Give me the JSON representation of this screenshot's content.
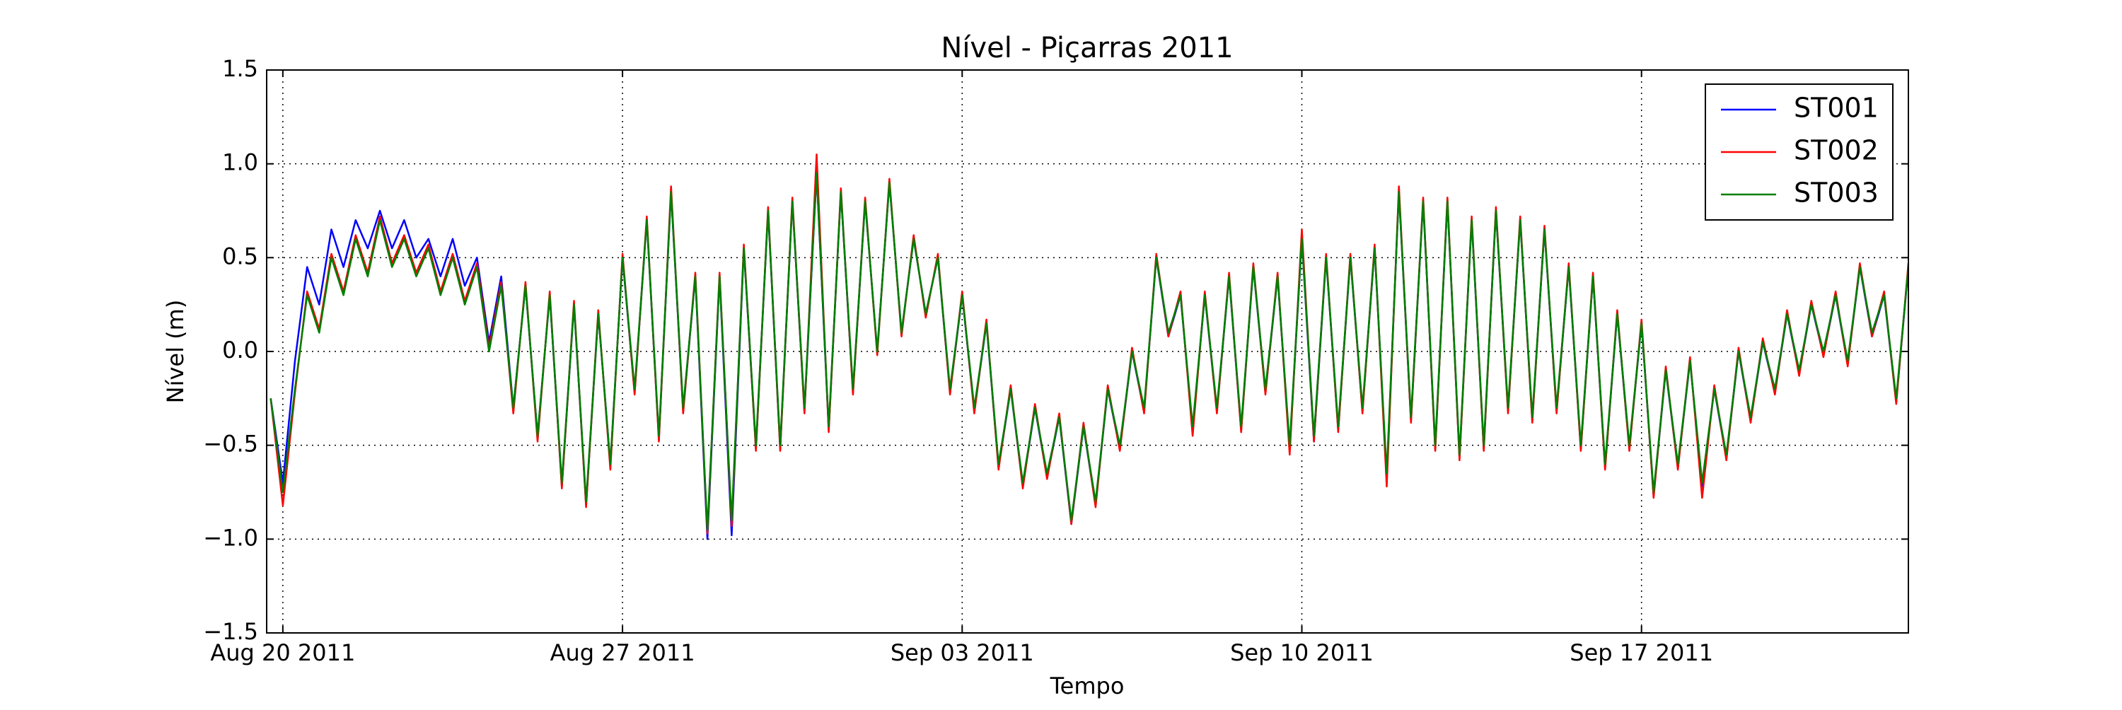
{
  "chart_data": {
    "type": "line",
    "title": "Nível - Piçarras 2011",
    "x_label": "Tempo",
    "y_label": "Nível (m)",
    "x": [
      "2011-08-19 18:00",
      "2011-08-20 00:00",
      "2011-08-20 06:00",
      "2011-08-20 12:00",
      "2011-08-20 18:00",
      "2011-08-21 00:00",
      "2011-08-21 06:00",
      "2011-08-21 12:00",
      "2011-08-21 18:00",
      "2011-08-22 00:00",
      "2011-08-22 06:00",
      "2011-08-22 12:00",
      "2011-08-22 18:00",
      "2011-08-23 00:00",
      "2011-08-23 06:00",
      "2011-08-23 12:00",
      "2011-08-23 18:00",
      "2011-08-24 00:00",
      "2011-08-24 06:00",
      "2011-08-24 12:00",
      "2011-08-24 18:00",
      "2011-08-25 00:00",
      "2011-08-25 06:00",
      "2011-08-25 12:00",
      "2011-08-25 18:00",
      "2011-08-26 00:00",
      "2011-08-26 06:00",
      "2011-08-26 12:00",
      "2011-08-26 18:00",
      "2011-08-27 00:00",
      "2011-08-27 06:00",
      "2011-08-27 12:00",
      "2011-08-27 18:00",
      "2011-08-28 00:00",
      "2011-08-28 06:00",
      "2011-08-28 12:00",
      "2011-08-28 18:00",
      "2011-08-29 00:00",
      "2011-08-29 06:00",
      "2011-08-29 12:00",
      "2011-08-29 18:00",
      "2011-08-30 00:00",
      "2011-08-30 06:00",
      "2011-08-30 12:00",
      "2011-08-30 18:00",
      "2011-08-31 00:00",
      "2011-08-31 06:00",
      "2011-08-31 12:00",
      "2011-08-31 18:00",
      "2011-09-01 00:00",
      "2011-09-01 06:00",
      "2011-09-01 12:00",
      "2011-09-01 18:00",
      "2011-09-02 00:00",
      "2011-09-02 06:00",
      "2011-09-02 12:00",
      "2011-09-02 18:00",
      "2011-09-03 00:00",
      "2011-09-03 06:00",
      "2011-09-03 12:00",
      "2011-09-03 18:00",
      "2011-09-04 00:00",
      "2011-09-04 06:00",
      "2011-09-04 12:00",
      "2011-09-04 18:00",
      "2011-09-05 00:00",
      "2011-09-05 06:00",
      "2011-09-05 12:00",
      "2011-09-05 18:00",
      "2011-09-06 00:00",
      "2011-09-06 06:00",
      "2011-09-06 12:00",
      "2011-09-06 18:00",
      "2011-09-07 00:00",
      "2011-09-07 06:00",
      "2011-09-07 12:00",
      "2011-09-07 18:00",
      "2011-09-08 00:00",
      "2011-09-08 06:00",
      "2011-09-08 12:00",
      "2011-09-08 18:00",
      "2011-09-09 00:00",
      "2011-09-09 06:00",
      "2011-09-09 12:00",
      "2011-09-09 18:00",
      "2011-09-10 00:00",
      "2011-09-10 06:00",
      "2011-09-10 12:00",
      "2011-09-10 18:00",
      "2011-09-11 00:00",
      "2011-09-11 06:00",
      "2011-09-11 12:00",
      "2011-09-11 18:00",
      "2011-09-12 00:00",
      "2011-09-12 06:00",
      "2011-09-12 12:00",
      "2011-09-12 18:00",
      "2011-09-13 00:00",
      "2011-09-13 06:00",
      "2011-09-13 12:00",
      "2011-09-13 18:00",
      "2011-09-14 00:00",
      "2011-09-14 06:00",
      "2011-09-14 12:00",
      "2011-09-14 18:00",
      "2011-09-15 00:00",
      "2011-09-15 06:00",
      "2011-09-15 12:00",
      "2011-09-15 18:00",
      "2011-09-16 00:00",
      "2011-09-16 06:00",
      "2011-09-16 12:00",
      "2011-09-16 18:00",
      "2011-09-17 00:00",
      "2011-09-17 06:00",
      "2011-09-17 12:00",
      "2011-09-17 18:00",
      "2011-09-18 00:00",
      "2011-09-18 06:00",
      "2011-09-18 12:00",
      "2011-09-18 18:00",
      "2011-09-19 00:00",
      "2011-09-19 06:00",
      "2011-09-19 12:00",
      "2011-09-19 18:00",
      "2011-09-20 00:00",
      "2011-09-20 06:00",
      "2011-09-20 12:00",
      "2011-09-20 18:00",
      "2011-09-21 00:00",
      "2011-09-21 06:00",
      "2011-09-21 12:00",
      "2011-09-21 18:00",
      "2011-09-22 00:00",
      "2011-09-22 06:00",
      "2011-09-22 12:00"
    ],
    "series": [
      {
        "name": "ST001",
        "color": "#0000ff",
        "values": [
          -0.25,
          -0.7,
          -0.05,
          0.45,
          0.25,
          0.65,
          0.45,
          0.7,
          0.55,
          0.75,
          0.55,
          0.7,
          0.5,
          0.6,
          0.4,
          0.6,
          0.35,
          0.5,
          0.05,
          0.4,
          -0.3,
          0.35,
          -0.45,
          0.3,
          -0.72,
          0.25,
          -0.82,
          0.2,
          -0.6,
          0.5,
          -0.22,
          0.7,
          -0.47,
          0.85,
          -0.32,
          0.4,
          -1.0,
          0.4,
          -0.98,
          0.55,
          -0.52,
          0.75,
          -0.52,
          0.8,
          -0.32,
          0.95,
          -0.42,
          0.85,
          -0.22,
          0.8,
          0.0,
          0.9,
          0.1,
          0.6,
          0.2,
          0.5,
          -0.22,
          0.3,
          -0.32,
          0.15,
          -0.62,
          -0.2,
          -0.72,
          -0.3,
          -0.67,
          -0.35,
          -0.92,
          -0.4,
          -0.82,
          -0.2,
          -0.52,
          0.0,
          -0.32,
          0.5,
          0.08,
          0.3,
          -0.42,
          0.3,
          -0.32,
          0.4,
          -0.42,
          0.45,
          -0.22,
          0.4,
          -0.52,
          0.6,
          -0.48,
          0.5,
          -0.42,
          0.5,
          -0.32,
          0.55,
          -0.67,
          0.85,
          -0.37,
          0.8,
          -0.52,
          0.8,
          -0.57,
          0.7,
          -0.52,
          0.75,
          -0.32,
          0.7,
          -0.37,
          0.65,
          -0.32,
          0.45,
          -0.52,
          0.4,
          -0.62,
          0.2,
          -0.52,
          0.15,
          -0.77,
          -0.1,
          -0.62,
          -0.05,
          -0.72,
          -0.2,
          -0.57,
          0.0,
          -0.37,
          0.05,
          -0.22,
          0.2,
          -0.12,
          0.25,
          -0.02,
          0.3,
          -0.07,
          0.45,
          0.08,
          0.3,
          -0.27,
          0.45
        ]
      },
      {
        "name": "ST002",
        "color": "#ff0000",
        "values": [
          -0.25,
          -0.82,
          -0.22,
          0.32,
          0.12,
          0.52,
          0.32,
          0.62,
          0.42,
          0.72,
          0.47,
          0.62,
          0.42,
          0.57,
          0.32,
          0.52,
          0.27,
          0.47,
          0.02,
          0.37,
          -0.33,
          0.37,
          -0.48,
          0.32,
          -0.73,
          0.27,
          -0.83,
          0.22,
          -0.63,
          0.52,
          -0.23,
          0.72,
          -0.48,
          0.88,
          -0.33,
          0.42,
          -0.97,
          0.42,
          -0.93,
          0.57,
          -0.53,
          0.77,
          -0.53,
          0.82,
          -0.33,
          1.05,
          -0.43,
          0.87,
          -0.23,
          0.82,
          -0.02,
          0.92,
          0.08,
          0.62,
          0.18,
          0.52,
          -0.23,
          0.32,
          -0.33,
          0.17,
          -0.63,
          -0.18,
          -0.73,
          -0.28,
          -0.68,
          -0.33,
          -0.92,
          -0.38,
          -0.83,
          -0.18,
          -0.53,
          0.02,
          -0.33,
          0.52,
          0.08,
          0.32,
          -0.45,
          0.32,
          -0.33,
          0.42,
          -0.43,
          0.47,
          -0.23,
          0.42,
          -0.55,
          0.65,
          -0.48,
          0.52,
          -0.43,
          0.52,
          -0.33,
          0.57,
          -0.72,
          0.88,
          -0.38,
          0.82,
          -0.53,
          0.82,
          -0.58,
          0.72,
          -0.53,
          0.77,
          -0.33,
          0.72,
          -0.38,
          0.67,
          -0.33,
          0.47,
          -0.53,
          0.42,
          -0.63,
          0.22,
          -0.53,
          0.17,
          -0.78,
          -0.08,
          -0.63,
          -0.03,
          -0.78,
          -0.18,
          -0.58,
          0.02,
          -0.38,
          0.07,
          -0.23,
          0.22,
          -0.13,
          0.27,
          -0.03,
          0.32,
          -0.08,
          0.47,
          0.08,
          0.32,
          -0.28,
          0.47
        ]
      },
      {
        "name": "ST003",
        "color": "#007f00",
        "values": [
          -0.25,
          -0.75,
          -0.2,
          0.3,
          0.1,
          0.5,
          0.3,
          0.6,
          0.4,
          0.7,
          0.45,
          0.6,
          0.4,
          0.55,
          0.3,
          0.5,
          0.25,
          0.45,
          0.0,
          0.35,
          -0.3,
          0.35,
          -0.45,
          0.3,
          -0.7,
          0.25,
          -0.8,
          0.2,
          -0.6,
          0.5,
          -0.2,
          0.7,
          -0.45,
          0.85,
          -0.3,
          0.4,
          -0.95,
          0.4,
          -0.9,
          0.55,
          -0.5,
          0.75,
          -0.5,
          0.8,
          -0.3,
          0.95,
          -0.4,
          0.85,
          -0.2,
          0.8,
          0.0,
          0.9,
          0.1,
          0.6,
          0.2,
          0.5,
          -0.2,
          0.3,
          -0.3,
          0.15,
          -0.6,
          -0.2,
          -0.7,
          -0.3,
          -0.65,
          -0.35,
          -0.9,
          -0.4,
          -0.8,
          -0.2,
          -0.5,
          0.0,
          -0.3,
          0.5,
          0.1,
          0.3,
          -0.4,
          0.3,
          -0.3,
          0.4,
          -0.4,
          0.45,
          -0.2,
          0.4,
          -0.5,
          0.6,
          -0.45,
          0.5,
          -0.4,
          0.5,
          -0.3,
          0.55,
          -0.65,
          0.85,
          -0.35,
          0.8,
          -0.5,
          0.8,
          -0.55,
          0.7,
          -0.5,
          0.75,
          -0.3,
          0.7,
          -0.35,
          0.65,
          -0.3,
          0.45,
          -0.5,
          0.4,
          -0.6,
          0.2,
          -0.5,
          0.15,
          -0.75,
          -0.1,
          -0.6,
          -0.05,
          -0.7,
          -0.2,
          -0.55,
          0.0,
          -0.35,
          0.05,
          -0.2,
          0.2,
          -0.1,
          0.25,
          0.0,
          0.3,
          -0.05,
          0.45,
          0.1,
          0.3,
          -0.25,
          0.45
        ]
      }
    ],
    "xlim": [
      "2011-08-19 16:00",
      "2011-09-22 12:00"
    ],
    "xticks": [
      {
        "value": "2011-08-20 00:00",
        "label": "Aug 20 2011"
      },
      {
        "value": "2011-08-27 00:00",
        "label": "Aug 27 2011"
      },
      {
        "value": "2011-09-03 00:00",
        "label": "Sep 03 2011"
      },
      {
        "value": "2011-09-10 00:00",
        "label": "Sep 10 2011"
      },
      {
        "value": "2011-09-17 00:00",
        "label": "Sep 17 2011"
      }
    ],
    "ylim": [
      -1.5,
      1.5
    ],
    "yticks": [
      {
        "value": -1.5,
        "label": "−1.5"
      },
      {
        "value": -1.0,
        "label": "−1.0"
      },
      {
        "value": -0.5,
        "label": "−0.5"
      },
      {
        "value": 0,
        "label": "0.0"
      },
      0.5,
      {
        "value": 1.0,
        "label": "1.0"
      },
      1.5
    ],
    "grid": true,
    "legend": "upper right"
  }
}
